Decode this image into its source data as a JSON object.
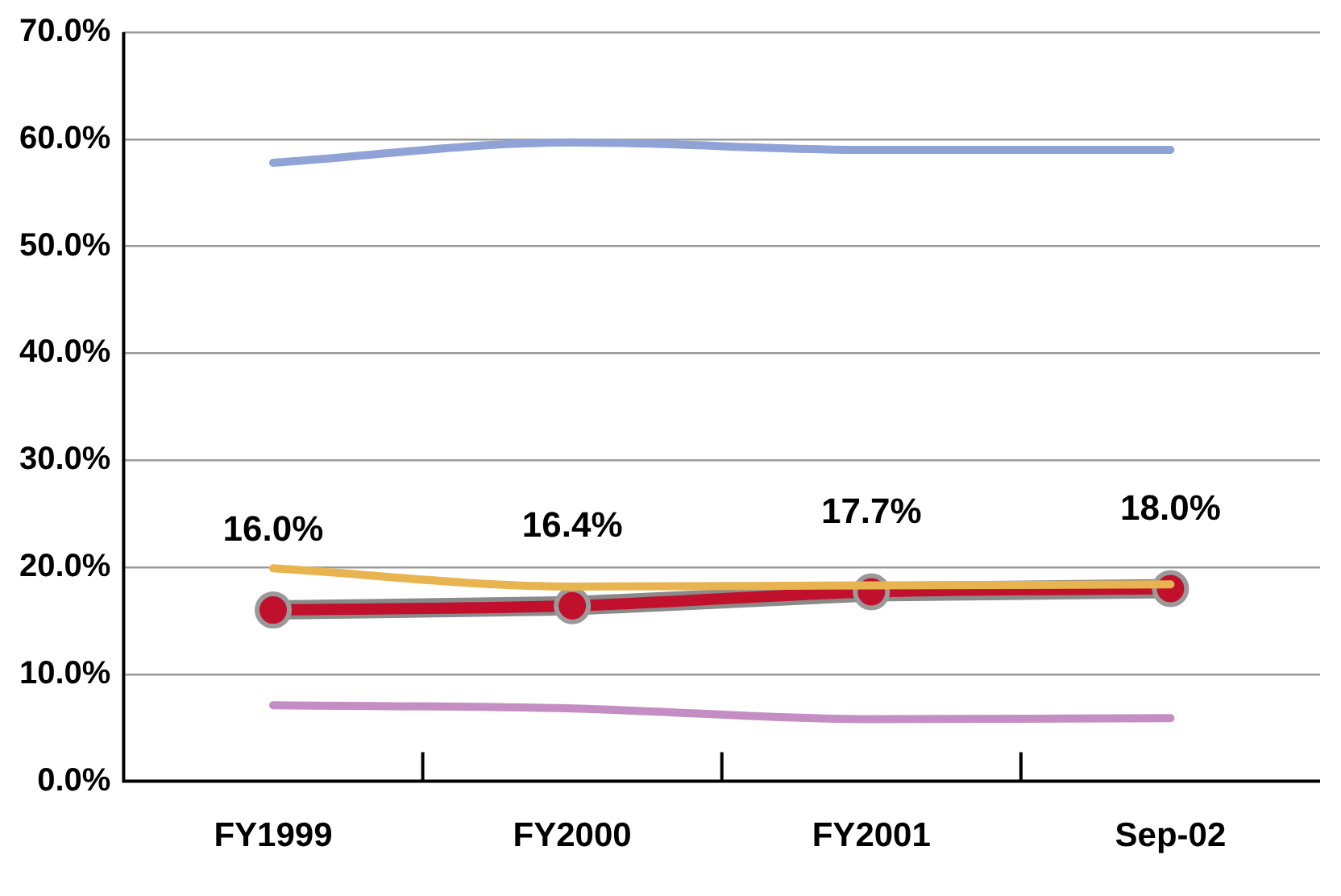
{
  "chart_data": {
    "type": "line",
    "categories": [
      "FY1999",
      "FY2000",
      "FY2001",
      "Sep-02"
    ],
    "series": [
      {
        "color": "#8fa3d6",
        "values": [
          57.8,
          59.7,
          59.0,
          59.0
        ]
      },
      {
        "color": "#e8b450",
        "values": [
          19.9,
          18.2,
          18.3,
          18.4
        ]
      },
      {
        "color": "#c48ec4",
        "values": [
          7.1,
          6.8,
          5.8,
          5.9
        ]
      },
      {
        "color": "#c0102c",
        "values": [
          16.0,
          16.4,
          17.7,
          18.0
        ],
        "value_labels": [
          "16.0%",
          "16.4%",
          "17.7%",
          "18.0%"
        ],
        "marker": "circle"
      }
    ],
    "ylim": [
      0,
      70
    ],
    "yticks": [
      {
        "value": 0,
        "label": "0.0%"
      },
      {
        "value": 10,
        "label": "10.0%"
      },
      {
        "value": 20,
        "label": "20.0%"
      },
      {
        "value": 30,
        "label": "30.0%"
      },
      {
        "value": 40,
        "label": "40.0%"
      },
      {
        "value": 50,
        "label": "50.0%"
      },
      {
        "value": 60,
        "label": "60.0%"
      },
      {
        "value": 70,
        "label": "70.0%"
      }
    ],
    "grid": "y",
    "legend": false,
    "marker": "none"
  }
}
